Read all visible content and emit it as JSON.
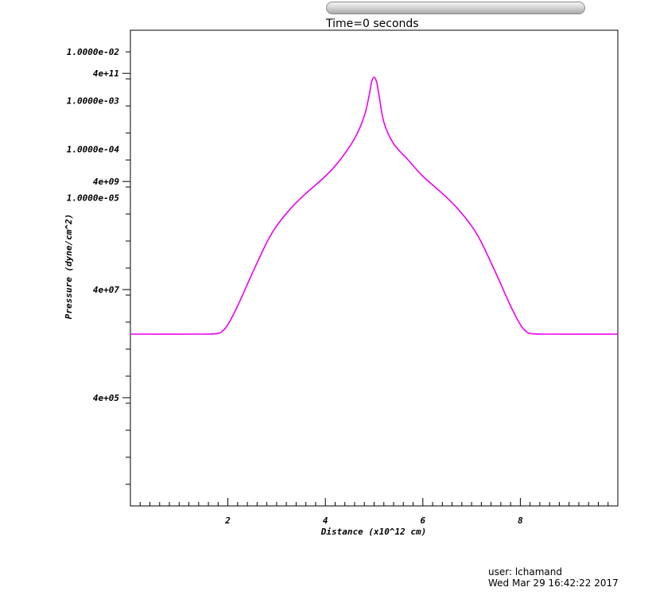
{
  "time_slider": {
    "label": "Time=0 seconds"
  },
  "footer": {
    "user": "user: lchamand",
    "timestamp": "Wed Mar 29 16:42:22 2017"
  },
  "colors": {
    "curve": "#ee00ee",
    "axis": "#000000"
  },
  "chart_data": {
    "type": "line",
    "xlabel": "Distance (x10^12 cm)",
    "ylabel": "Pressure (dyne/cm^2)",
    "xlim": [
      0,
      10
    ],
    "ylim_log10": [
      3.6,
      12.4
    ],
    "y_scale": "log",
    "x_ticks": [
      {
        "value": 2,
        "label": "2"
      },
      {
        "value": 4,
        "label": "4"
      },
      {
        "value": 6,
        "label": "6"
      },
      {
        "value": 8,
        "label": "8"
      }
    ],
    "y_ticks": [
      {
        "value": 400000.0,
        "label": "4e+05"
      },
      {
        "value": 40000000.0,
        "label": "4e+07"
      },
      {
        "value": 4000000000.0,
        "label": "4e+09"
      },
      {
        "value": 400000000000.0,
        "label": "4e+11"
      }
    ],
    "y_ticks_overlay": [
      {
        "label": "1.0000e-02"
      },
      {
        "label": "1.0000e-03"
      },
      {
        "label": "1.0000e-04"
      },
      {
        "label": "1.0000e-05"
      }
    ],
    "series": [
      {
        "x": [
          0,
          1.5,
          1.8,
          1.9,
          2.0,
          2.2,
          2.5,
          2.8,
          3.0,
          3.3,
          3.6,
          4.0,
          4.3,
          4.6,
          4.8,
          4.9,
          4.95,
          5.0,
          5.05,
          5.1,
          5.2,
          5.4,
          5.7,
          6.0,
          6.4,
          6.7,
          7.0,
          7.2,
          7.5,
          7.8,
          8.0,
          8.1,
          8.2,
          8.5,
          10
        ],
        "y": [
          6000000.0,
          6000000.0,
          6200000.0,
          7000000.0,
          9000000.0,
          20000000.0,
          80000000.0,
          300000000.0,
          600000000.0,
          1300000000.0,
          2400000000.0,
          5000000000.0,
          10000000000.0,
          25000000000.0,
          65000000000.0,
          160000000000.0,
          280000000000.0,
          340000000000.0,
          280000000000.0,
          160000000000.0,
          50000000000.0,
          20000000000.0,
          10000000000.0,
          5000000000.0,
          2400000000.0,
          1300000000.0,
          600000000.0,
          300000000.0,
          80000000.0,
          20000000.0,
          9000000.0,
          7000000.0,
          6200000.0,
          6000000.0,
          6000000.0
        ]
      }
    ]
  }
}
